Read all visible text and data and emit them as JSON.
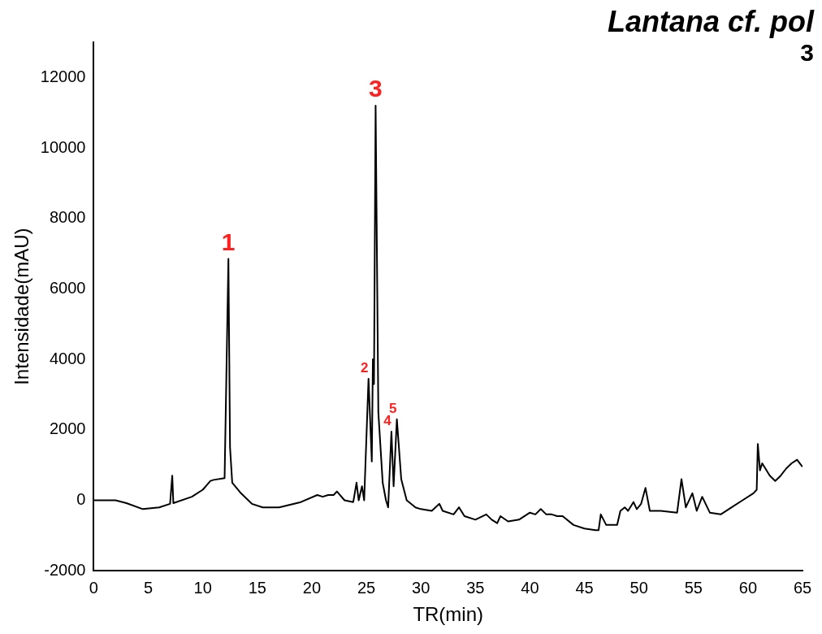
{
  "chart_data": {
    "type": "line",
    "title": "Lantana cf. pol",
    "subtitle": "3",
    "xlabel": "TR(min)",
    "ylabel": "Intensidade(mAU)",
    "xlim": [
      0,
      65
    ],
    "xticks": [
      0,
      5,
      10,
      15,
      20,
      25,
      30,
      35,
      40,
      45,
      50,
      55,
      60,
      65
    ],
    "ylim": [
      -2000,
      13000
    ],
    "yticks": [
      -2000,
      0,
      2000,
      4000,
      6000,
      8000,
      10000,
      12000
    ],
    "grid": false,
    "legend": false,
    "marker": "none",
    "line_style": "solid",
    "series": [
      {
        "color": "#000000",
        "x": [
          0,
          2,
          3,
          4.5,
          6,
          7,
          7.2,
          7.3,
          9,
          10,
          10.7,
          11,
          12,
          12.35,
          12.5,
          12.7,
          13.5,
          14.5,
          15.5,
          17,
          19,
          20.5,
          21,
          21.5,
          22,
          22.3,
          23,
          23.8,
          24.1,
          24.3,
          24.6,
          24.8,
          25.2,
          25.5,
          25.6,
          25.7,
          25.85,
          26.1,
          26.5,
          26.8,
          27,
          27.3,
          27.5,
          27.8,
          28.2,
          28.7,
          29.5,
          30,
          31,
          31.7,
          32,
          33,
          33.5,
          34,
          35,
          36,
          36.5,
          37,
          37.3,
          38,
          39,
          40,
          40.5,
          41,
          41.5,
          42,
          42.5,
          43,
          44,
          45,
          46,
          46.3,
          46.5,
          47,
          48,
          48.3,
          48.7,
          49,
          49.5,
          49.8,
          50.2,
          50.6,
          51,
          52,
          53.5,
          53.9,
          54.3,
          54.9,
          55.3,
          55.8,
          56.5,
          57.5,
          58.5,
          59.5,
          60.5,
          60.8,
          60.9,
          61.1,
          61.3,
          61.6,
          62,
          62.5,
          63,
          63.5,
          64,
          64.5,
          65
        ],
        "values": [
          0,
          0,
          -80,
          -250,
          -200,
          -100,
          700,
          -80,
          100,
          300,
          550,
          580,
          630,
          6850,
          1500,
          500,
          200,
          -100,
          -200,
          -200,
          -50,
          150,
          100,
          150,
          150,
          250,
          0,
          -50,
          500,
          0,
          400,
          0,
          3450,
          1100,
          4000,
          3300,
          11200,
          2500,
          500,
          0,
          -200,
          1950,
          400,
          2300,
          600,
          0,
          -200,
          -250,
          -300,
          -100,
          -300,
          -400,
          -200,
          -450,
          -550,
          -400,
          -550,
          -650,
          -450,
          -600,
          -550,
          -350,
          -400,
          -250,
          -400,
          -400,
          -450,
          -450,
          -700,
          -800,
          -850,
          -850,
          -400,
          -700,
          -700,
          -300,
          -200,
          -300,
          -50,
          -250,
          -100,
          350,
          -300,
          -300,
          -350,
          600,
          -200,
          200,
          -300,
          100,
          -350,
          -400,
          -200,
          0,
          200,
          300,
          1600,
          850,
          1050,
          900,
          700,
          550,
          700,
          900,
          1050,
          1150,
          950
        ]
      }
    ],
    "annotations": [
      {
        "text": "1",
        "x": 12.35,
        "y": 6850
      },
      {
        "text": "2",
        "x": 25.2,
        "y": 3450
      },
      {
        "text": "3",
        "x": 25.85,
        "y": 11200
      },
      {
        "text": "4",
        "x": 27.3,
        "y": 1950
      },
      {
        "text": "5",
        "x": 27.8,
        "y": 2300
      }
    ]
  }
}
